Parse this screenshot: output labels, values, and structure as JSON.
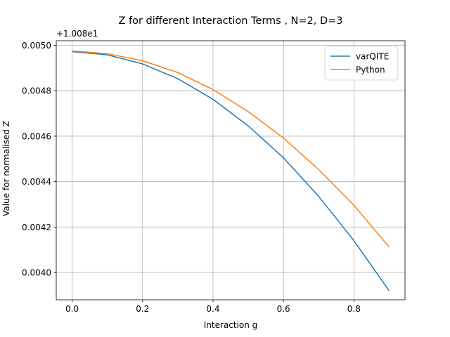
{
  "chart_data": {
    "type": "line",
    "title": "Z for different Interaction Terms , N=2, D=3",
    "xlabel": "Interaction g",
    "ylabel": "Value for normalised Z",
    "offset_label": "+1.008e1",
    "x": [
      0.0,
      0.1,
      0.2,
      0.3,
      0.4,
      0.5,
      0.6,
      0.7,
      0.8,
      0.9
    ],
    "xlim": [
      -0.045,
      0.945
    ],
    "ylim": [
      0.00388,
      0.00502
    ],
    "xticks": [
      0.0,
      0.2,
      0.4,
      0.6,
      0.8
    ],
    "xtick_labels": [
      "0.0",
      "0.2",
      "0.4",
      "0.6",
      "0.8"
    ],
    "yticks": [
      0.004,
      0.0042,
      0.0044,
      0.0046,
      0.0048,
      0.005
    ],
    "ytick_labels": [
      "0.0040",
      "0.0042",
      "0.0044",
      "0.0046",
      "0.0048",
      "0.0050"
    ],
    "grid": true,
    "legend_position": "top-right",
    "series": [
      {
        "name": "varQITE",
        "color": "#1f77b4",
        "values": [
          0.004972,
          0.004958,
          0.004918,
          0.004853,
          0.004762,
          0.004645,
          0.004505,
          0.004335,
          0.00414,
          0.00392
        ]
      },
      {
        "name": "Python",
        "color": "#ff7f0e",
        "values": [
          0.004975,
          0.004963,
          0.004932,
          0.00488,
          0.004805,
          0.004708,
          0.004592,
          0.004453,
          0.004296,
          0.004112
        ]
      }
    ]
  }
}
